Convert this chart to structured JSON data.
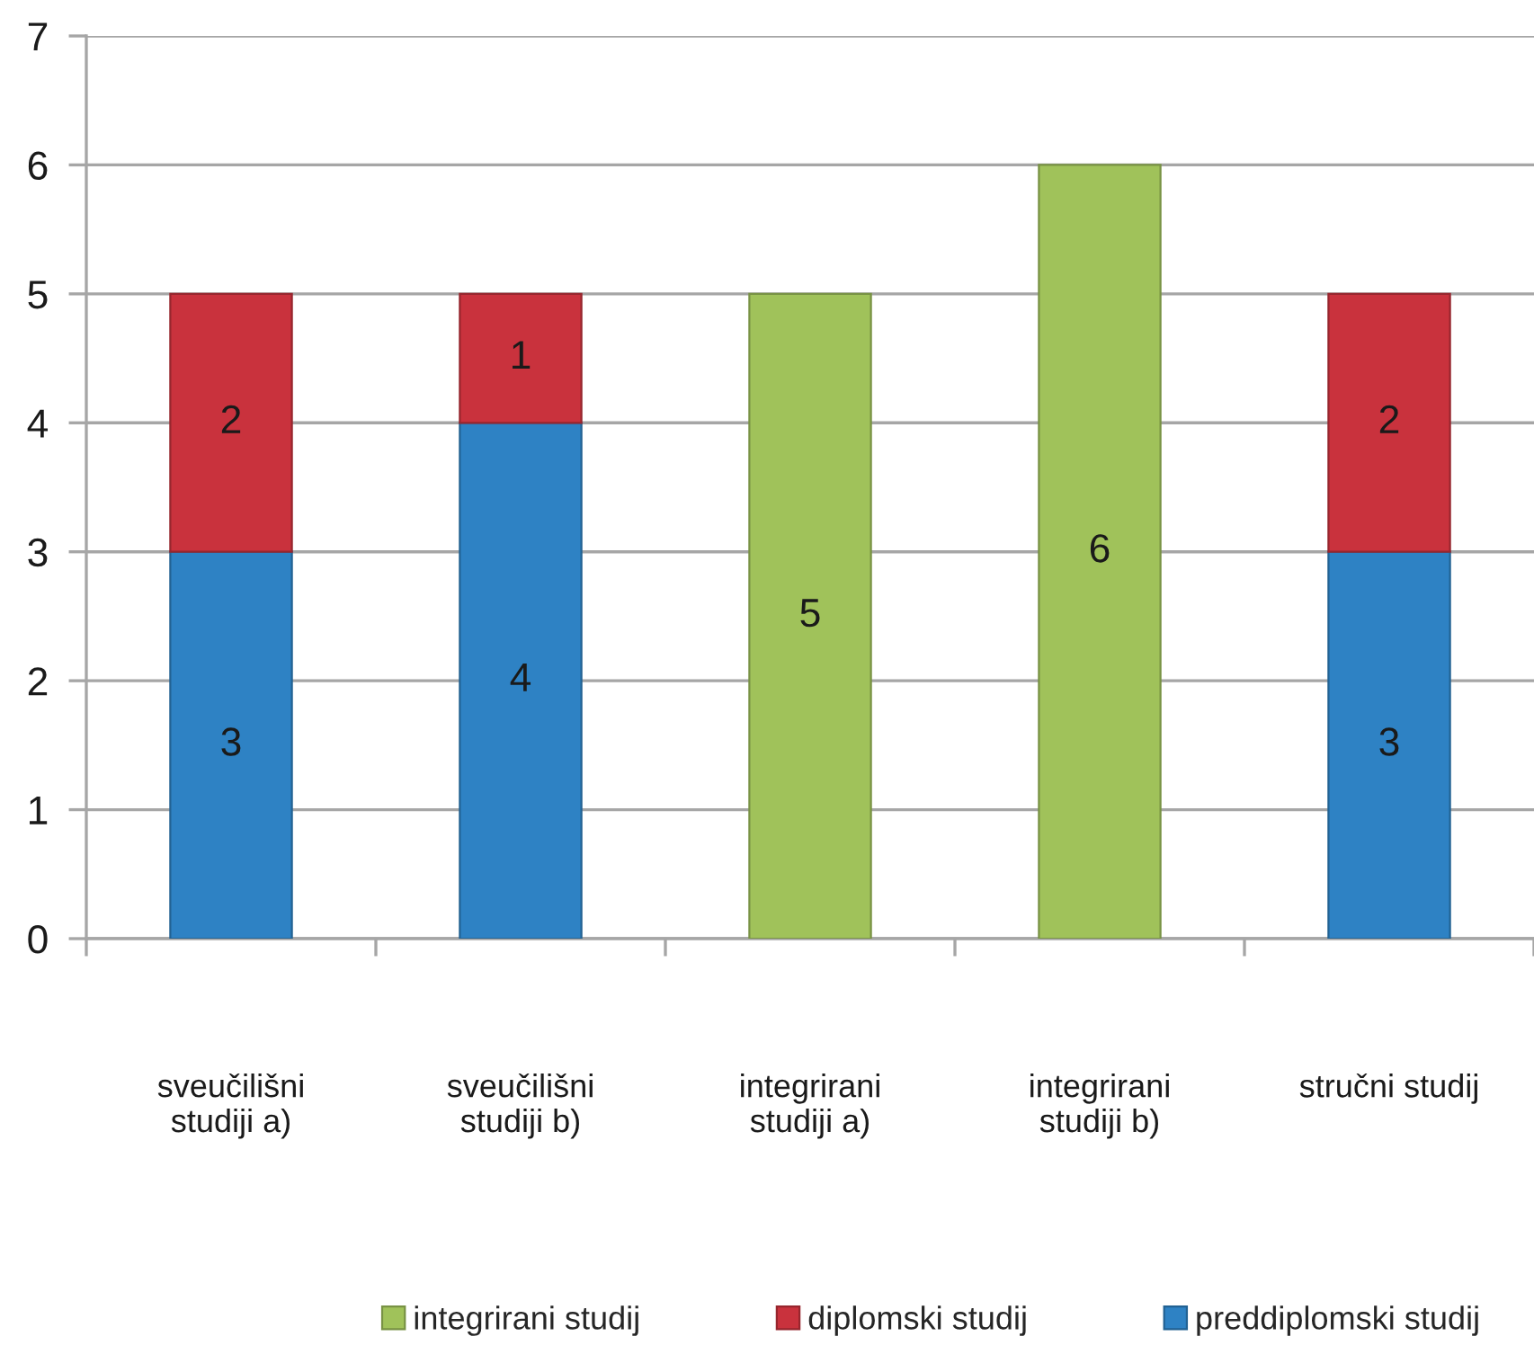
{
  "chart_data": {
    "type": "bar",
    "stacked": true,
    "categories": [
      "sveučilišni\nstudiji a)",
      "sveučilišni\nstudiji b)",
      "integrirani\nstudiji a)",
      "integrirani\nstudiji b)",
      "stručni studij"
    ],
    "series": [
      {
        "name": "preddiplomski studij",
        "color": "#2e82c4",
        "values": [
          3,
          4,
          null,
          null,
          3
        ]
      },
      {
        "name": "diplomski studij",
        "color": "#c9323d",
        "values": [
          2,
          1,
          null,
          null,
          2
        ]
      },
      {
        "name": "integrirani studij",
        "color": "#a0c25a",
        "values": [
          null,
          null,
          5,
          6,
          null
        ]
      }
    ],
    "ylim": [
      0,
      7
    ],
    "yticks": [
      0,
      1,
      2,
      3,
      4,
      5,
      6,
      7
    ],
    "grid": "y",
    "legend": "bottom",
    "data_labels": true
  }
}
